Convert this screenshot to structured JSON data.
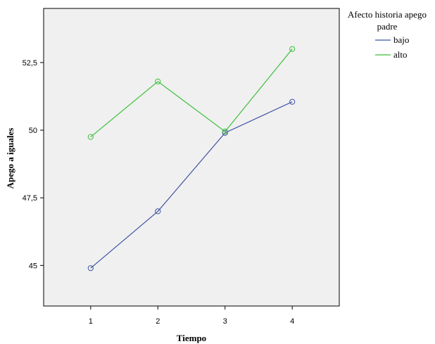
{
  "chart_data": {
    "type": "line",
    "xlabel": "Tiempo",
    "ylabel": "Apego a iguales",
    "x": [
      1,
      2,
      3,
      4
    ],
    "x_tick_labels": [
      "1",
      "2",
      "3",
      "4"
    ],
    "xlim": [
      0.3,
      4.7
    ],
    "ylim": [
      43.5,
      54.5
    ],
    "y_ticks": [
      45,
      47.5,
      50,
      52.5
    ],
    "y_tick_labels": [
      "45",
      "47,5",
      "50",
      "52,5"
    ],
    "grid": false,
    "plot_background": "#f0f0f0",
    "legend": {
      "title_lines": [
        "Afecto historia apego",
        "padre"
      ],
      "placement": "right"
    },
    "series": [
      {
        "name": "bajo",
        "color": "#3e54a3",
        "marker": "open-circle",
        "values": [
          44.9,
          47.0,
          49.9,
          51.05
        ]
      },
      {
        "name": "alto",
        "color": "#3bbf3b",
        "marker": "open-circle",
        "values": [
          49.75,
          51.8,
          49.95,
          53.0
        ]
      }
    ]
  }
}
